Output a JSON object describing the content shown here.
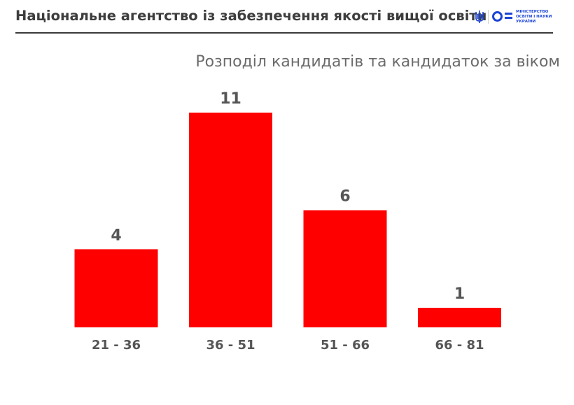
{
  "header": {
    "title": "Національне агентство із забезпечення якості вищої освіти",
    "ministry_lines": [
      "МІНІСТЕРСТВО",
      "ОСВІТИ І НАУКИ",
      "УКРАЇНИ"
    ]
  },
  "chart_data": {
    "type": "bar",
    "title": "Розподіл кандидатів та кандидаток за віком",
    "categories": [
      "21 - 36",
      "36 - 51",
      "51 - 66",
      "66 - 81"
    ],
    "values": [
      4,
      11,
      6,
      1
    ],
    "xlabel": "",
    "ylabel": "",
    "ylim": [
      0,
      11
    ],
    "grid": false,
    "legend": "none",
    "colors": {
      "bar": "#ff0000",
      "label": "#555555"
    }
  }
}
